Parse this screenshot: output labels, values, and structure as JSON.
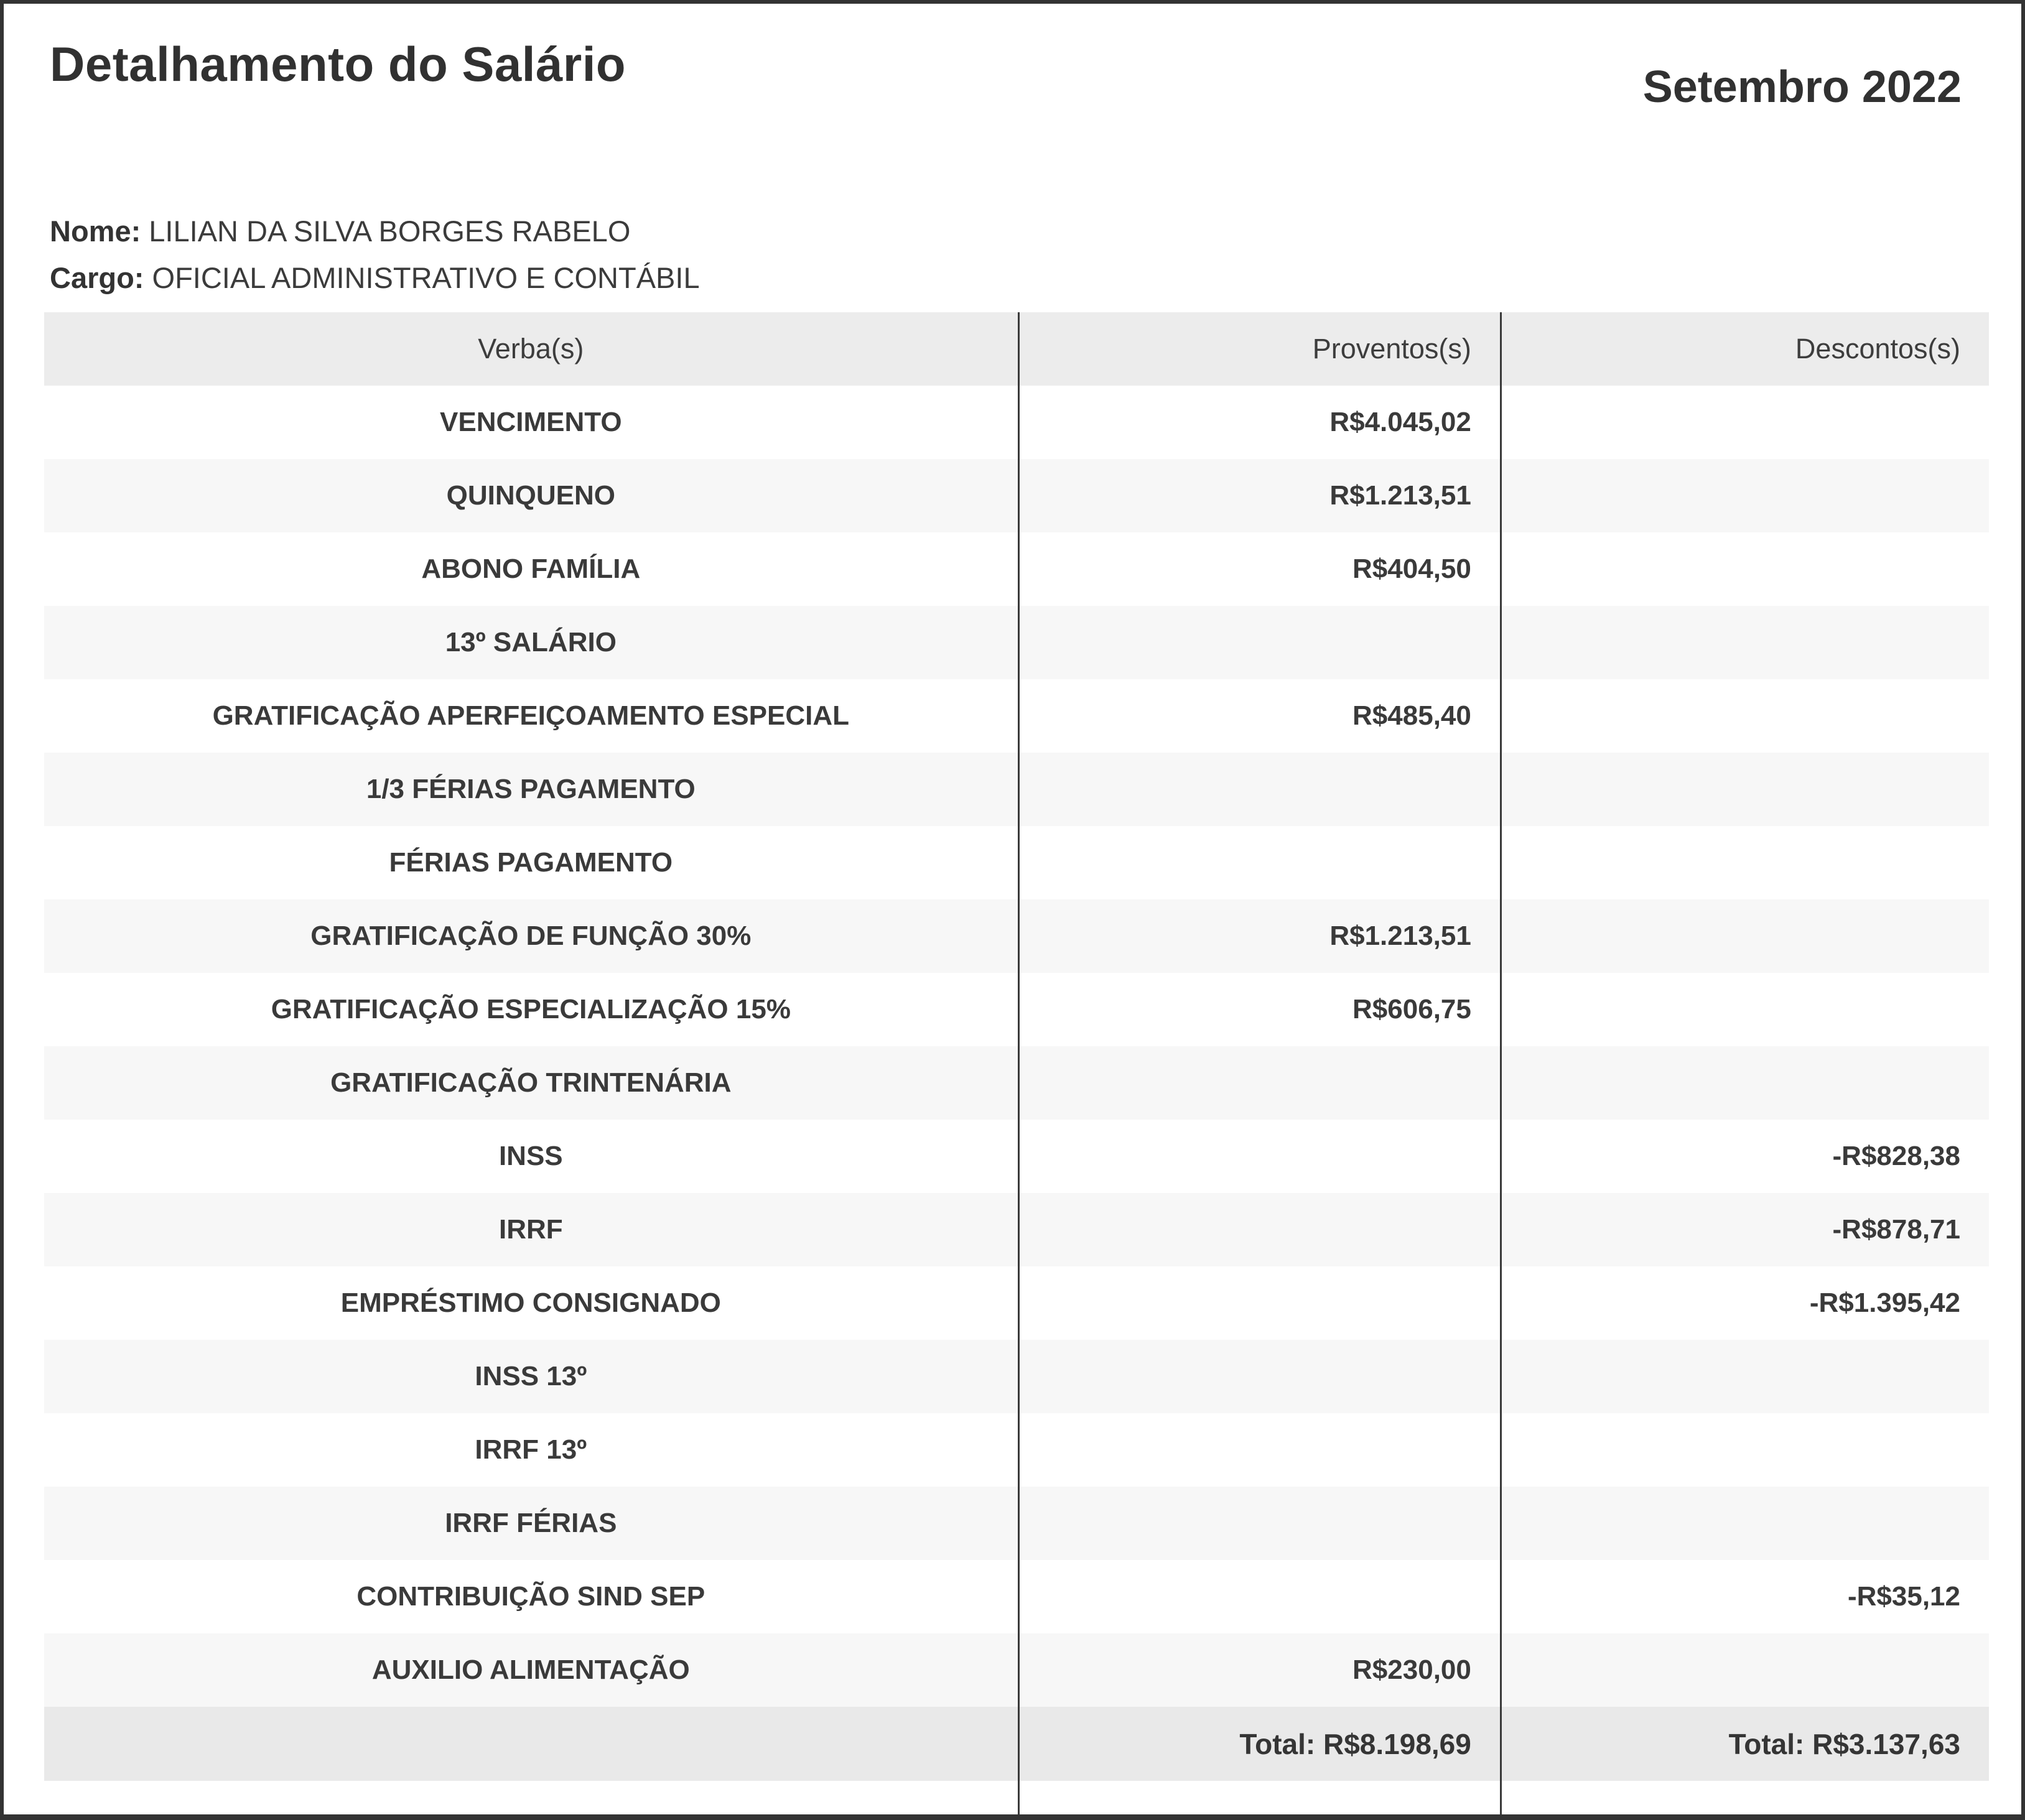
{
  "header": {
    "title": "Detalhamento do Salário",
    "period": "Setembro 2022"
  },
  "employee": {
    "name_label": "Nome:",
    "name_value": "LILIAN DA SILVA BORGES RABELO",
    "role_label": "Cargo:",
    "role_value": "OFICIAL ADMINISTRATIVO E CONTÁBIL"
  },
  "table": {
    "columns": [
      "Verba(s)",
      "Proventos(s)",
      "Descontos(s)"
    ],
    "rows": [
      {
        "verba": "VENCIMENTO",
        "proventos": "R$4.045,02",
        "descontos": ""
      },
      {
        "verba": "QUINQUENO",
        "proventos": "R$1.213,51",
        "descontos": ""
      },
      {
        "verba": "ABONO FAMÍLIA",
        "proventos": "R$404,50",
        "descontos": ""
      },
      {
        "verba": "13º SALÁRIO",
        "proventos": "",
        "descontos": ""
      },
      {
        "verba": "GRATIFICAÇÃO APERFEIÇOAMENTO ESPECIAL",
        "proventos": "R$485,40",
        "descontos": ""
      },
      {
        "verba": "1/3 FÉRIAS PAGAMENTO",
        "proventos": "",
        "descontos": ""
      },
      {
        "verba": "FÉRIAS PAGAMENTO",
        "proventos": "",
        "descontos": ""
      },
      {
        "verba": "GRATIFICAÇÃO DE FUNÇÃO 30%",
        "proventos": "R$1.213,51",
        "descontos": ""
      },
      {
        "verba": "GRATIFICAÇÃO ESPECIALIZAÇÃO 15%",
        "proventos": "R$606,75",
        "descontos": ""
      },
      {
        "verba": "GRATIFICAÇÃO TRINTENÁRIA",
        "proventos": "",
        "descontos": ""
      },
      {
        "verba": "INSS",
        "proventos": "",
        "descontos": "-R$828,38"
      },
      {
        "verba": "IRRF",
        "proventos": "",
        "descontos": "-R$878,71"
      },
      {
        "verba": "EMPRÉSTIMO CONSIGNADO",
        "proventos": "",
        "descontos": "-R$1.395,42"
      },
      {
        "verba": "INSS 13º",
        "proventos": "",
        "descontos": ""
      },
      {
        "verba": "IRRF 13º",
        "proventos": "",
        "descontos": ""
      },
      {
        "verba": "IRRF FÉRIAS",
        "proventos": "",
        "descontos": ""
      },
      {
        "verba": "CONTRIBUIÇÃO SIND SEP",
        "proventos": "",
        "descontos": "-R$35,12"
      },
      {
        "verba": "AUXILIO ALIMENTAÇÃO",
        "proventos": "R$230,00",
        "descontos": ""
      }
    ],
    "totals": {
      "proventos": "Total: R$8.198,69",
      "descontos": "Total: R$3.137,63"
    }
  },
  "colors": {
    "frame_border": "#333333",
    "header_bg": "#ececec",
    "stripe_bg": "#f7f7f7",
    "total_bg": "#e9e9e9",
    "text": "#3b3b3b"
  }
}
